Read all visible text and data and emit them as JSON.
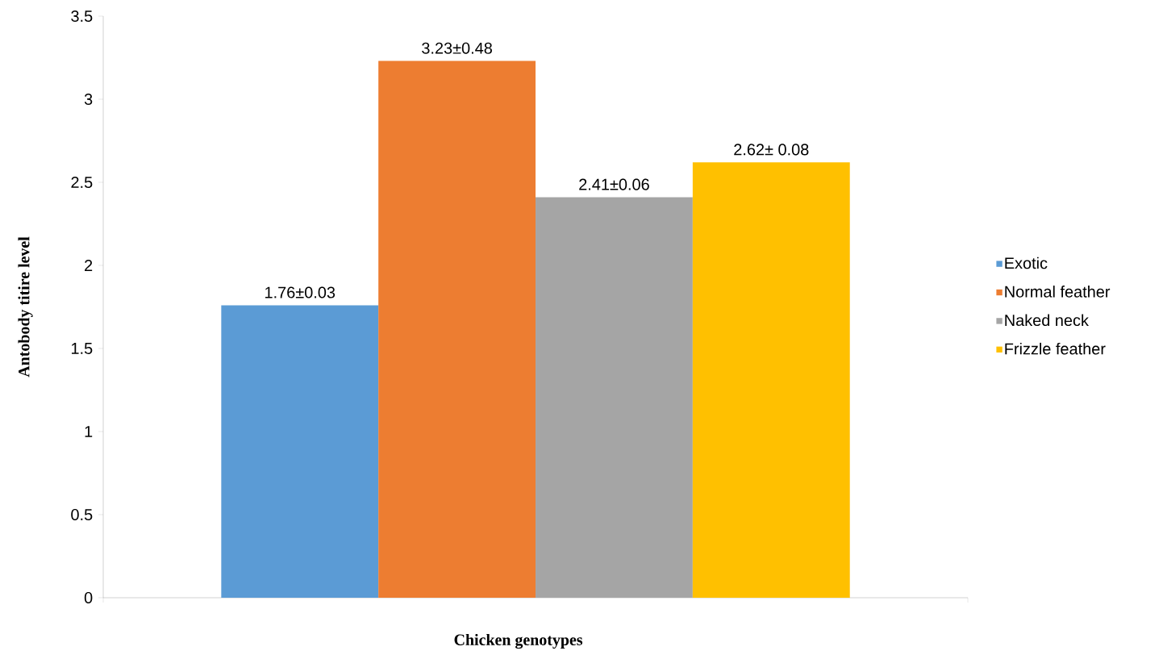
{
  "chart_data": {
    "type": "bar",
    "xlabel": "Chicken genotypes",
    "ylabel": "Antobody titire level",
    "categories": [
      null
    ],
    "ylim": [
      0,
      3.5
    ],
    "yticks": [
      0,
      0.5,
      1,
      1.5,
      2,
      2.5,
      3,
      3.5
    ],
    "legend": "right",
    "series": [
      {
        "name": "Exotic",
        "color": "#5b9bd5",
        "values": [
          1.76
        ],
        "value_labels": [
          "1.76±0.03"
        ]
      },
      {
        "name": "Normal feather",
        "color": "#ed7d31",
        "values": [
          3.23
        ],
        "value_labels": [
          "3.23±0.48"
        ]
      },
      {
        "name": "Naked neck",
        "color": "#a5a5a5",
        "values": [
          2.41
        ],
        "value_labels": [
          "2.41±0.06"
        ]
      },
      {
        "name": "Frizzle feather",
        "color": "#ffc000",
        "values": [
          2.62
        ],
        "value_labels": [
          "2.62± 0.08"
        ]
      }
    ]
  }
}
